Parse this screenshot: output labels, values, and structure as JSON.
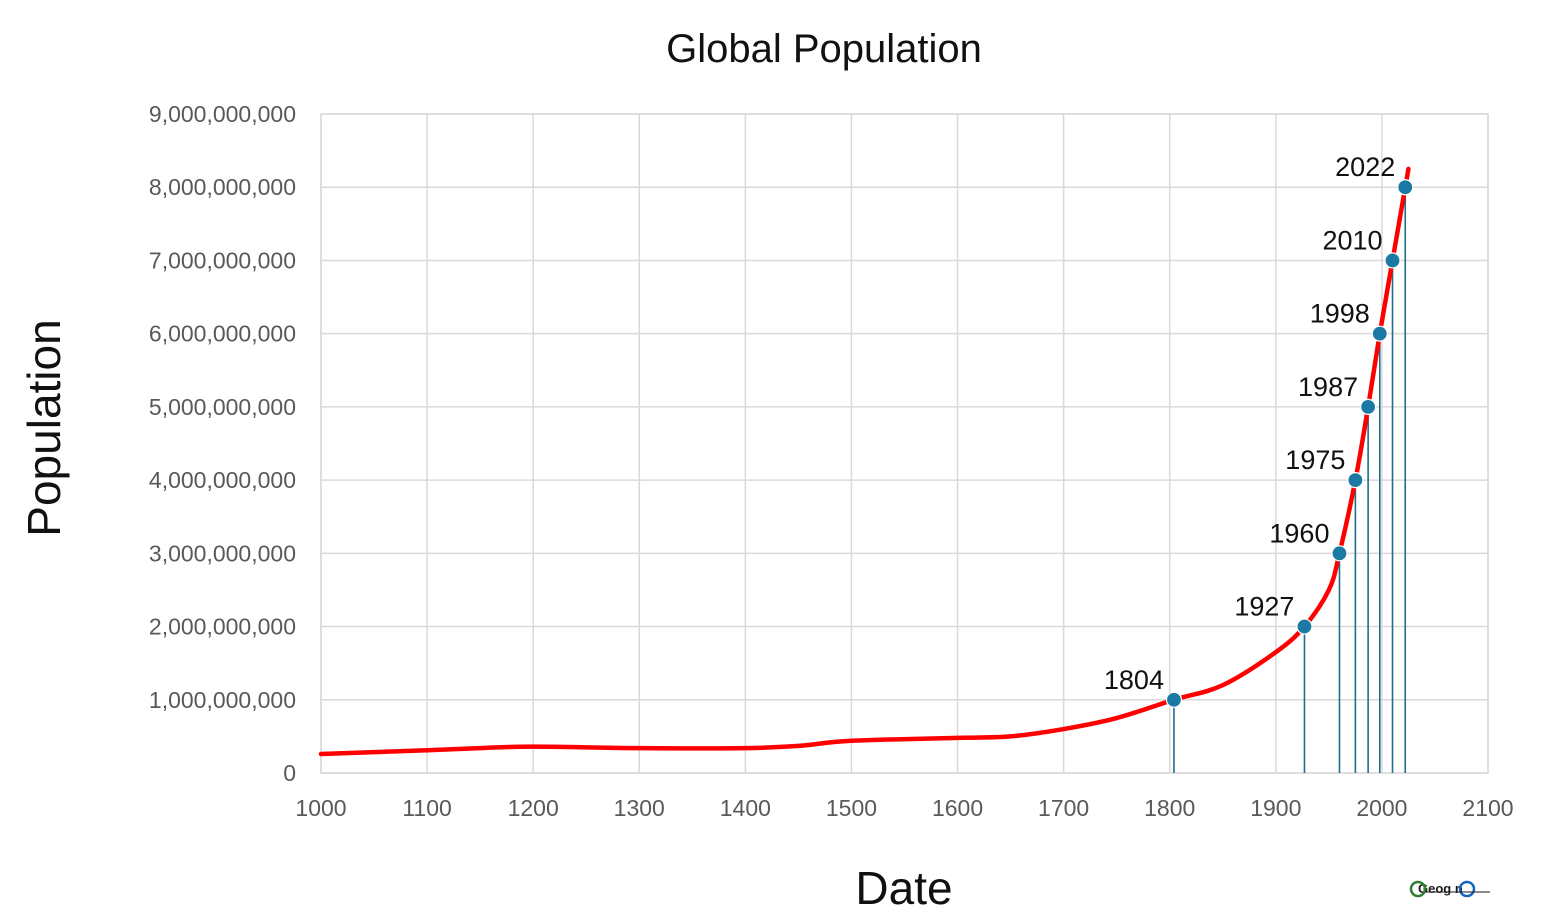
{
  "chart_data": {
    "type": "line",
    "title": "Global Population",
    "xlabel": "Date",
    "ylabel": "Population",
    "xlim": [
      1000,
      2100
    ],
    "ylim": [
      0,
      9000000000
    ],
    "x_ticks": [
      1000,
      1100,
      1200,
      1300,
      1400,
      1500,
      1600,
      1700,
      1800,
      1900,
      2000,
      2100
    ],
    "x_tick_labels": [
      "1000",
      "1100",
      "1200",
      "1300",
      "1400",
      "1500",
      "1600",
      "1700",
      "1800",
      "1900",
      "2000",
      "2100"
    ],
    "y_ticks": [
      0,
      1000000000,
      2000000000,
      3000000000,
      4000000000,
      5000000000,
      6000000000,
      7000000000,
      8000000000,
      9000000000
    ],
    "y_tick_labels": [
      "0",
      "1,000,000,000",
      "2,000,000,000",
      "3,000,000,000",
      "4,000,000,000",
      "5,000,000,000",
      "6,000,000,000",
      "7,000,000,000",
      "8,000,000,000",
      "9,000,000,000"
    ],
    "grid": true,
    "series": [
      {
        "color": "#ff0000",
        "x": [
          1000,
          1100,
          1150,
          1200,
          1300,
          1400,
          1450,
          1500,
          1600,
          1650,
          1700,
          1750,
          1804,
          1850,
          1900,
          1927,
          1950,
          1960,
          1975,
          1987,
          1998,
          2010,
          2022,
          2025
        ],
        "y": [
          260000000,
          310000000,
          340000000,
          360000000,
          340000000,
          340000000,
          370000000,
          440000000,
          480000000,
          500000000,
          600000000,
          750000000,
          1000000000,
          1200000000,
          1650000000,
          2000000000,
          2500000000,
          3000000000,
          4000000000,
          5000000000,
          6000000000,
          7000000000,
          8000000000,
          8250000000
        ]
      }
    ],
    "marked_points": {
      "color": "#1b7aa3",
      "x": [
        1804,
        1927,
        1960,
        1975,
        1987,
        1998,
        2010,
        2022
      ],
      "y": [
        1000000000,
        2000000000,
        3000000000,
        4000000000,
        5000000000,
        6000000000,
        7000000000,
        8000000000
      ],
      "labels": [
        "1804",
        "1927",
        "1960",
        "1975",
        "1987",
        "1998",
        "2010",
        "2022"
      ]
    }
  },
  "watermark": {
    "text": "Geog  n",
    "icon": "globe-icon"
  }
}
